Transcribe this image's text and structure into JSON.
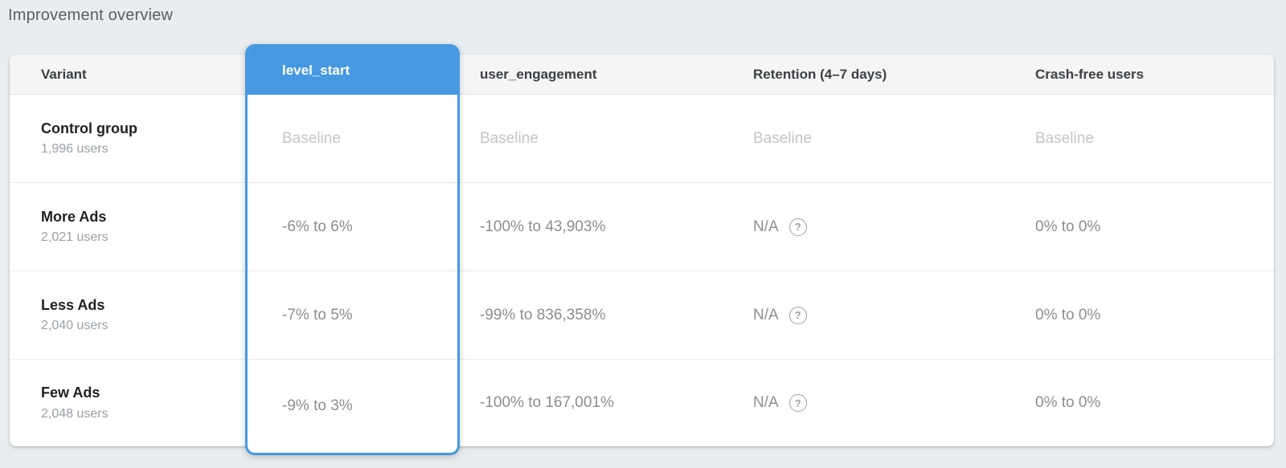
{
  "page": {
    "title": "Improvement overview"
  },
  "colors": {
    "accent_blue": "#4699e0"
  },
  "help_icon": "?",
  "table": {
    "columns": [
      {
        "label": "Variant"
      },
      {
        "label": "level_start",
        "selected": true
      },
      {
        "label": "user_engagement"
      },
      {
        "label": "Retention (4–7 days)"
      },
      {
        "label": "Crash-free users"
      }
    ],
    "rows": [
      {
        "variant": "Control group",
        "users": "1,996 users",
        "level_start": "Baseline",
        "user_engagement": "Baseline",
        "retention": "Baseline",
        "crash_free": "Baseline"
      },
      {
        "variant": "More Ads",
        "users": "2,021 users",
        "level_start": "-6% to 6%",
        "user_engagement": "-100% to 43,903%",
        "retention": "N/A",
        "crash_free": "0% to 0%"
      },
      {
        "variant": "Less Ads",
        "users": "2,040 users",
        "level_start": "-7% to 5%",
        "user_engagement": "-99% to 836,358%",
        "retention": "N/A",
        "crash_free": "0% to 0%"
      },
      {
        "variant": "Few Ads",
        "users": "2,048 users",
        "level_start": "-9% to 3%",
        "user_engagement": "-100% to 167,001%",
        "retention": "N/A",
        "crash_free": "0% to 0%"
      }
    ]
  }
}
